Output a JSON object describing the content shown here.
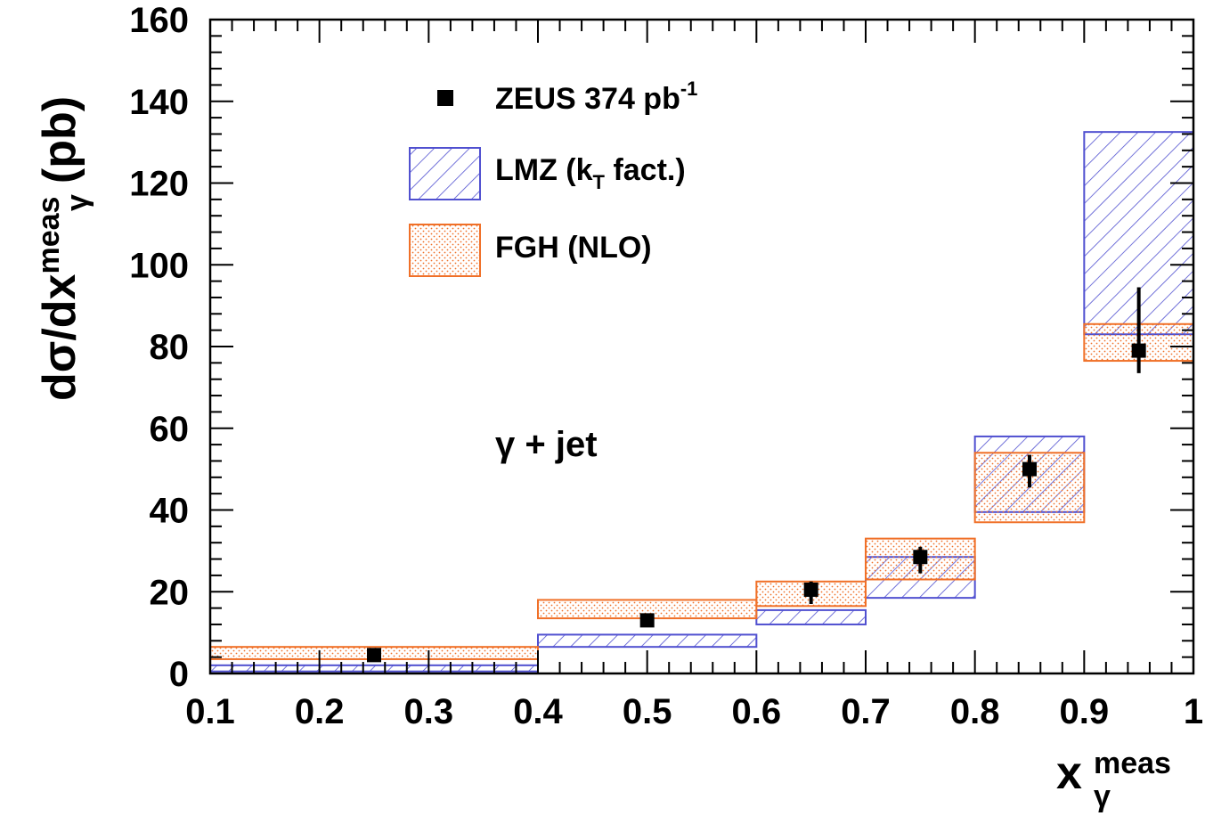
{
  "chart_data": {
    "type": "bar",
    "title": "",
    "xlabel": {
      "main": "x",
      "sub": "γ",
      "sup": "meas"
    },
    "ylabel": {
      "prefix": "dσ/dx",
      "sub": "γ",
      "sup": "meas",
      "suffix": " (pb)"
    },
    "xlim": [
      0.1,
      1.0
    ],
    "ylim": [
      0,
      160
    ],
    "x_ticks": [
      "0.1",
      "0.2",
      "0.3",
      "0.4",
      "0.5",
      "0.6",
      "0.7",
      "0.8",
      "0.9",
      "1"
    ],
    "y_ticks": [
      "0",
      "20",
      "40",
      "60",
      "80",
      "100",
      "120",
      "140",
      "160"
    ],
    "annotation": "γ + jet",
    "legend": {
      "placement": "top-left",
      "entries": [
        {
          "label": "ZEUS 374 pb",
          "sup": "-1",
          "style": "marker"
        },
        {
          "label": "LMZ (k",
          "sub": "T",
          "label_end": " fact.)",
          "style": "hatched"
        },
        {
          "label": "FGH (NLO)",
          "style": "dotted"
        }
      ]
    },
    "colors": {
      "data": "#000000",
      "LMZ": "#5050d0",
      "FGH": "#f07028"
    },
    "series": [
      {
        "name": "ZEUS 374 pb-1",
        "points": [
          {
            "x": 0.25,
            "y": 4.5,
            "err_lo": 0.8,
            "err_hi": 0.8
          },
          {
            "x": 0.5,
            "y": 13.0,
            "err_lo": 1.2,
            "err_hi": 1.2
          },
          {
            "x": 0.65,
            "y": 20.5,
            "err_lo": 3.5,
            "err_hi": 2.0
          },
          {
            "x": 0.75,
            "y": 28.5,
            "err_lo": 4.0,
            "err_hi": 2.5
          },
          {
            "x": 0.85,
            "y": 50.0,
            "err_lo": 4.5,
            "err_hi": 3.5
          },
          {
            "x": 0.95,
            "y": 79.0,
            "err_lo": 5.5,
            "err_hi": 15.5
          }
        ]
      },
      {
        "name": "LMZ (kT fact.)",
        "bands": [
          {
            "x0": 0.1,
            "x1": 0.4,
            "lo": 0.5,
            "hi": 2.0
          },
          {
            "x0": 0.4,
            "x1": 0.6,
            "lo": 6.5,
            "hi": 9.5
          },
          {
            "x0": 0.6,
            "x1": 0.7,
            "lo": 12.0,
            "hi": 15.5
          },
          {
            "x0": 0.7,
            "x1": 0.8,
            "lo": 18.5,
            "hi": 28.5
          },
          {
            "x0": 0.8,
            "x1": 0.9,
            "lo": 39.5,
            "hi": 58.0
          },
          {
            "x0": 0.9,
            "x1": 1.0,
            "lo": 83.0,
            "hi": 132.5
          }
        ]
      },
      {
        "name": "FGH (NLO)",
        "bands": [
          {
            "x0": 0.1,
            "x1": 0.4,
            "lo": 3.5,
            "hi": 6.5
          },
          {
            "x0": 0.4,
            "x1": 0.6,
            "lo": 13.5,
            "hi": 18.0
          },
          {
            "x0": 0.6,
            "x1": 0.7,
            "lo": 16.5,
            "hi": 22.5
          },
          {
            "x0": 0.7,
            "x1": 0.8,
            "lo": 23.0,
            "hi": 33.0
          },
          {
            "x0": 0.8,
            "x1": 0.9,
            "lo": 37.0,
            "hi": 54.0
          },
          {
            "x0": 0.9,
            "x1": 1.0,
            "lo": 76.5,
            "hi": 85.5
          }
        ]
      }
    ]
  }
}
